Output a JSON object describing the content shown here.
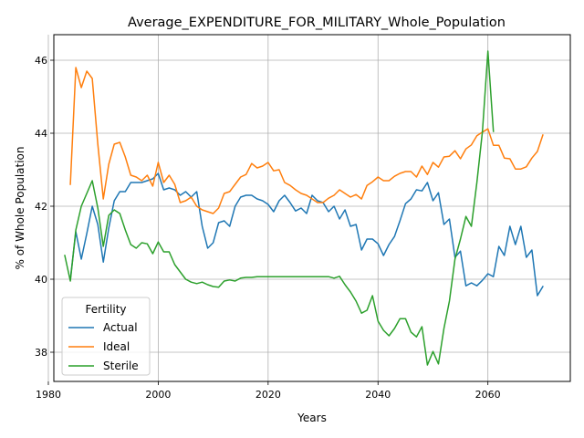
{
  "chart_data": {
    "type": "line",
    "title": "Average_EXPENDITURE_FOR_MILITARY_Whole_Population",
    "xlabel": "Years",
    "ylabel": "% of Whole Population",
    "xlim": [
      1981,
      2075
    ],
    "ylim": [
      37.2,
      46.7
    ],
    "xticks": [
      1980,
      2000,
      2020,
      2040,
      2060
    ],
    "yticks": [
      38,
      40,
      42,
      44,
      46
    ],
    "grid": true,
    "legend": {
      "title": "Fertility",
      "position": "lower-left"
    },
    "series": [
      {
        "name": "Actual",
        "color": "#1f77b4",
        "x": [
          1984,
          1985,
          1986,
          1987,
          1988,
          1989,
          1990,
          1991,
          1992,
          1993,
          1994,
          1995,
          1996,
          1997,
          1998,
          1999,
          2000,
          2001,
          2002,
          2003,
          2004,
          2005,
          2006,
          2007,
          2008,
          2009,
          2010,
          2011,
          2012,
          2013,
          2014,
          2015,
          2016,
          2017,
          2018,
          2019,
          2020,
          2021,
          2022,
          2023,
          2024,
          2025,
          2026,
          2027,
          2028,
          2029,
          2030,
          2031,
          2032,
          2033,
          2034,
          2035,
          2036,
          2037,
          2038,
          2039,
          2040,
          2041,
          2042,
          2043,
          2044,
          2045,
          2046,
          2047,
          2048,
          2049,
          2050,
          2051,
          2052,
          2053,
          2054,
          2055,
          2056,
          2057,
          2058,
          2059,
          2060,
          2061,
          2062,
          2063,
          2064,
          2065,
          2066,
          2067,
          2068,
          2069,
          2070
        ],
        "y": [
          40.0,
          41.3,
          40.55,
          41.25,
          42.0,
          41.5,
          40.47,
          41.4,
          42.15,
          42.4,
          42.4,
          42.65,
          42.65,
          42.65,
          42.7,
          42.75,
          42.9,
          42.45,
          42.5,
          42.45,
          42.3,
          42.4,
          42.25,
          42.4,
          41.45,
          40.85,
          41.0,
          41.55,
          41.6,
          41.45,
          42.0,
          42.25,
          42.3,
          42.3,
          42.2,
          42.15,
          42.05,
          41.85,
          42.15,
          42.3,
          42.1,
          41.87,
          41.95,
          41.8,
          42.3,
          42.15,
          42.1,
          41.85,
          42.0,
          41.65,
          41.9,
          41.45,
          41.5,
          40.8,
          41.1,
          41.1,
          40.97,
          40.65,
          40.95,
          41.17,
          41.6,
          42.07,
          42.2,
          42.45,
          42.42,
          42.65,
          42.15,
          42.37,
          41.5,
          41.65,
          40.6,
          40.77,
          39.82,
          39.9,
          39.82,
          39.97,
          40.15,
          40.07,
          40.9,
          40.65,
          41.45,
          40.95,
          41.45,
          40.6,
          40.8,
          39.55,
          39.8
        ]
      },
      {
        "name": "Ideal",
        "color": "#ff7f0e",
        "x": [
          1984,
          1985,
          1986,
          1987,
          1988,
          1989,
          1990,
          1991,
          1992,
          1993,
          1994,
          1995,
          1996,
          1997,
          1998,
          1999,
          2000,
          2001,
          2002,
          2003,
          2004,
          2005,
          2006,
          2007,
          2008,
          2009,
          2010,
          2011,
          2012,
          2013,
          2014,
          2015,
          2016,
          2017,
          2018,
          2019,
          2020,
          2021,
          2022,
          2023,
          2024,
          2025,
          2026,
          2027,
          2028,
          2029,
          2030,
          2031,
          2032,
          2033,
          2034,
          2035,
          2036,
          2037,
          2038,
          2039,
          2040,
          2041,
          2042,
          2043,
          2044,
          2045,
          2046,
          2047,
          2048,
          2049,
          2050,
          2051,
          2052,
          2053,
          2054,
          2055,
          2056,
          2057,
          2058,
          2059,
          2060,
          2061,
          2062,
          2063,
          2064,
          2065,
          2066,
          2067,
          2068,
          2069,
          2070
        ],
        "y": [
          42.6,
          45.8,
          45.25,
          45.7,
          45.5,
          43.7,
          42.2,
          43.15,
          43.7,
          43.75,
          43.35,
          42.85,
          42.8,
          42.7,
          42.85,
          42.55,
          43.2,
          42.65,
          42.85,
          42.6,
          42.1,
          42.15,
          42.25,
          42.0,
          41.9,
          41.85,
          41.8,
          41.95,
          42.35,
          42.4,
          42.6,
          42.8,
          42.87,
          43.17,
          43.05,
          43.1,
          43.2,
          42.97,
          43.0,
          42.65,
          42.57,
          42.45,
          42.35,
          42.3,
          42.2,
          42.1,
          42.1,
          42.22,
          42.3,
          42.45,
          42.35,
          42.25,
          42.32,
          42.2,
          42.57,
          42.67,
          42.8,
          42.7,
          42.7,
          42.82,
          42.9,
          42.95,
          42.95,
          42.8,
          43.1,
          42.87,
          43.2,
          43.07,
          43.35,
          43.37,
          43.52,
          43.3,
          43.57,
          43.68,
          43.93,
          44.03,
          44.12,
          43.67,
          43.67,
          43.32,
          43.3,
          43.02,
          43.02,
          43.08,
          43.32,
          43.5,
          43.95
        ]
      },
      {
        "name": "Sterile",
        "color": "#2ca02c",
        "x": [
          1983,
          1984,
          1985,
          1986,
          1987,
          1988,
          1989,
          1990,
          1991,
          1992,
          1993,
          1994,
          1995,
          1996,
          1997,
          1998,
          1999,
          2000,
          2001,
          2002,
          2003,
          2004,
          2005,
          2006,
          2007,
          2008,
          2009,
          2010,
          2011,
          2012,
          2013,
          2014,
          2015,
          2016,
          2017,
          2018,
          2019,
          2020,
          2021,
          2022,
          2023,
          2024,
          2025,
          2026,
          2027,
          2028,
          2029,
          2030,
          2031,
          2032,
          2033,
          2034,
          2035,
          2036,
          2037,
          2038,
          2039,
          2040,
          2041,
          2042,
          2043,
          2044,
          2045,
          2046,
          2047,
          2048,
          2049,
          2050,
          2051,
          2052,
          2053,
          2054,
          2055,
          2056,
          2057,
          2058,
          2059,
          2060,
          2061
        ],
        "y": [
          40.65,
          39.95,
          41.35,
          42.0,
          42.35,
          42.7,
          41.95,
          40.9,
          41.75,
          41.9,
          41.8,
          41.35,
          40.95,
          40.85,
          41.0,
          40.97,
          40.7,
          41.02,
          40.75,
          40.75,
          40.4,
          40.2,
          40.0,
          39.92,
          39.88,
          39.92,
          39.85,
          39.8,
          39.78,
          39.95,
          39.98,
          39.95,
          40.03,
          40.05,
          40.05,
          40.07,
          40.07,
          40.07,
          40.07,
          40.07,
          40.07,
          40.07,
          40.07,
          40.07,
          40.07,
          40.07,
          40.07,
          40.07,
          40.07,
          40.03,
          40.08,
          39.85,
          39.65,
          39.4,
          39.07,
          39.15,
          39.55,
          38.85,
          38.6,
          38.45,
          38.65,
          38.92,
          38.92,
          38.55,
          38.42,
          38.7,
          37.65,
          38.02,
          37.68,
          38.65,
          39.4,
          40.55,
          41.1,
          41.72,
          41.45,
          42.65,
          44.05,
          46.25,
          44.05
        ]
      }
    ]
  }
}
